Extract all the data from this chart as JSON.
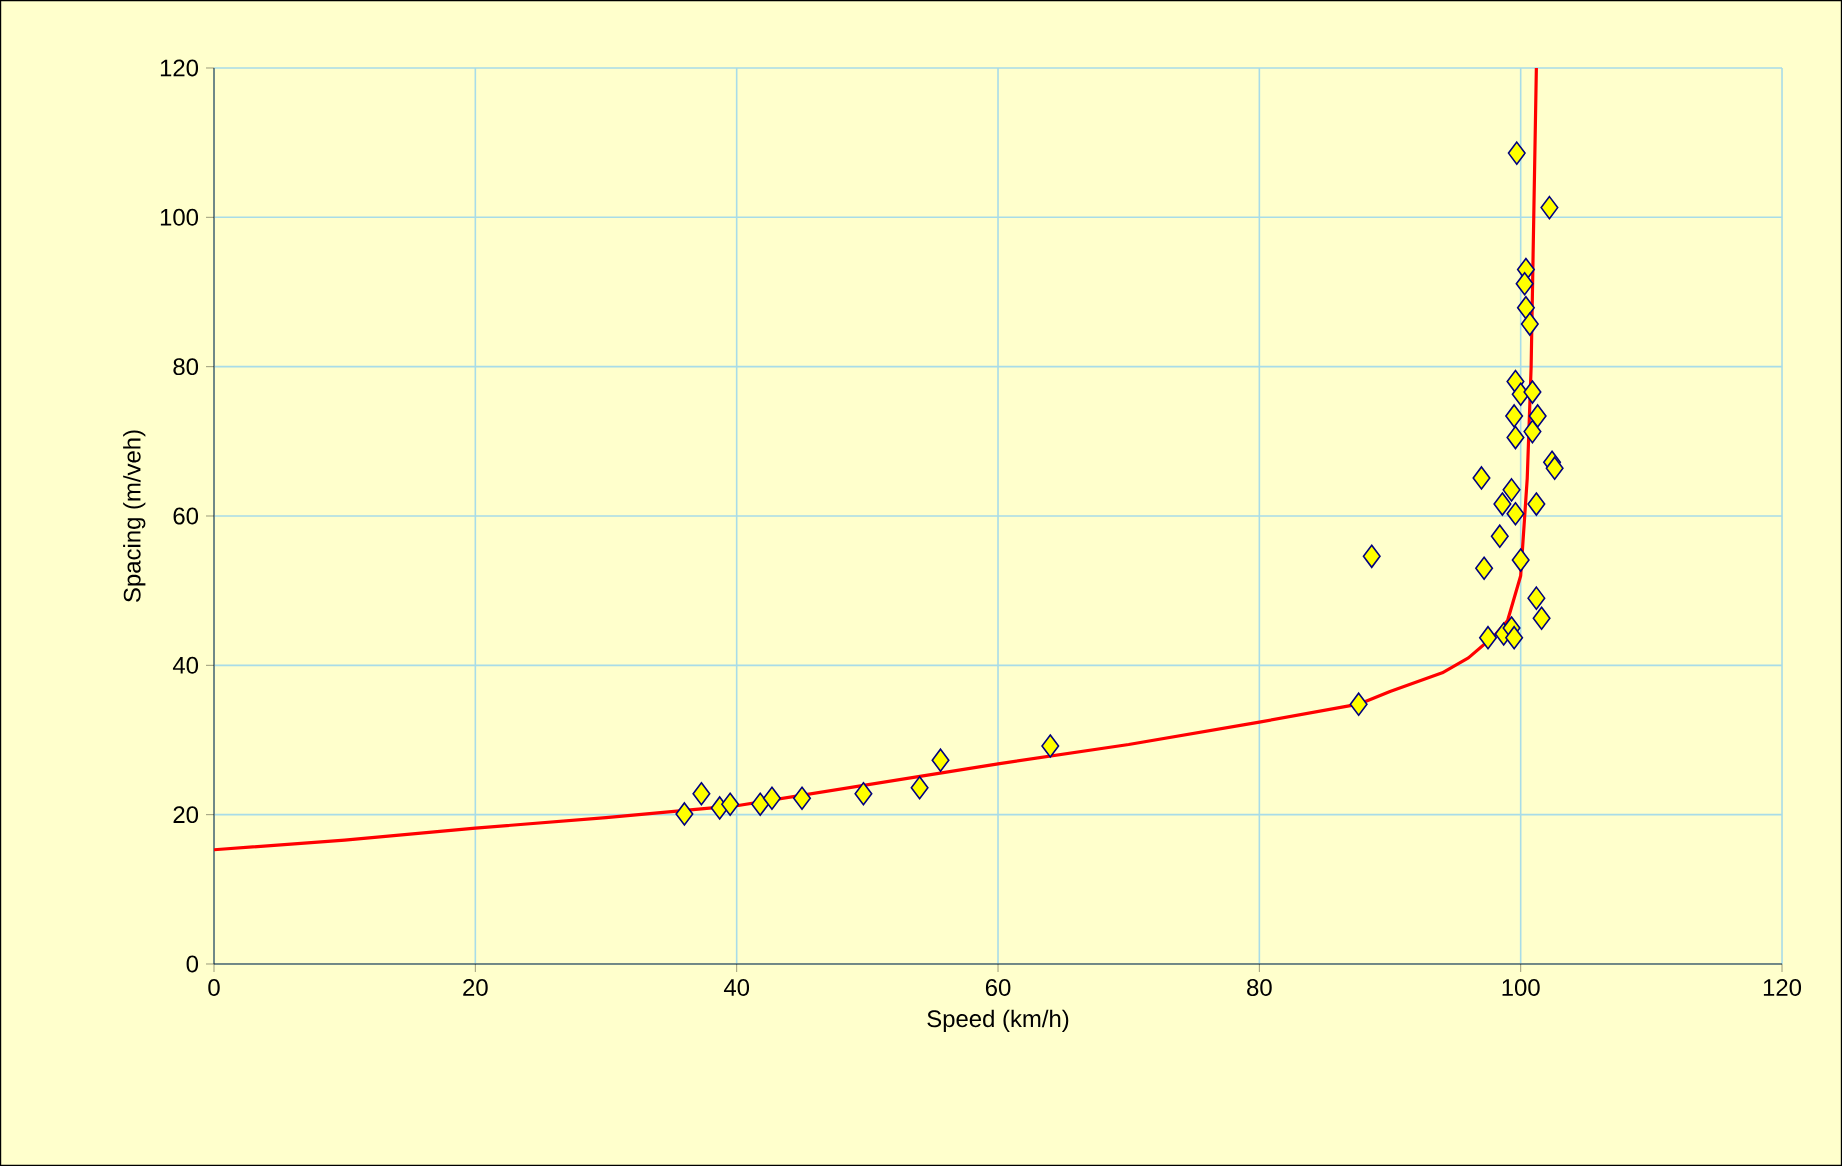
{
  "chart_data": {
    "type": "scatter",
    "xlabel": "Speed (km/h)",
    "ylabel": "Spacing (m/veh)",
    "xlim": [
      0,
      120
    ],
    "ylim": [
      0,
      120
    ],
    "xticks": [
      0,
      20,
      40,
      60,
      80,
      100,
      120
    ],
    "yticks": [
      0,
      20,
      40,
      60,
      80,
      100,
      120
    ],
    "grid": true,
    "series": [
      {
        "marker": "diamond",
        "color": "#ffff00",
        "x": [
          36.0,
          37.3,
          38.7,
          39.5,
          41.8,
          42.7,
          45.0,
          49.7,
          54.0,
          55.6,
          64.0,
          87.6,
          88.6,
          99.7,
          102.2,
          100.4,
          100.3,
          100.4,
          100.7,
          99.6,
          100.0,
          100.9,
          99.5,
          101.3,
          99.6,
          100.9,
          102.4,
          102.6,
          97.0,
          99.3,
          98.6,
          101.2,
          99.6,
          98.4,
          97.2,
          100.0,
          101.2,
          101.6,
          97.5,
          98.7,
          99.3,
          99.5
        ],
        "values": [
          20.1,
          22.8,
          20.9,
          21.4,
          21.4,
          22.2,
          22.2,
          22.8,
          23.6,
          27.3,
          29.2,
          34.8,
          54.6,
          108.6,
          101.3,
          93.0,
          91.1,
          87.9,
          85.7,
          78.0,
          76.3,
          76.6,
          73.4,
          73.4,
          70.5,
          71.3,
          67.2,
          66.4,
          65.1,
          63.5,
          61.6,
          61.6,
          60.3,
          57.3,
          53.0,
          54.1,
          49.0,
          46.3,
          43.7,
          44.2,
          45.0,
          43.7
        ]
      },
      {
        "type": "line",
        "line_style": "solid",
        "color": "#ff0000",
        "x": [
          0,
          10,
          20,
          30,
          40,
          50,
          60,
          70,
          80,
          87.6,
          90,
          94,
          96,
          98,
          99,
          100,
          100.5,
          100.8,
          101.0,
          101.2
        ],
        "values": [
          15.3,
          16.6,
          18.2,
          19.6,
          21.2,
          24.0,
          26.8,
          29.4,
          32.4,
          34.8,
          36.5,
          39,
          41,
          44,
          46,
          52,
          65,
          80,
          100,
          120
        ]
      }
    ]
  }
}
